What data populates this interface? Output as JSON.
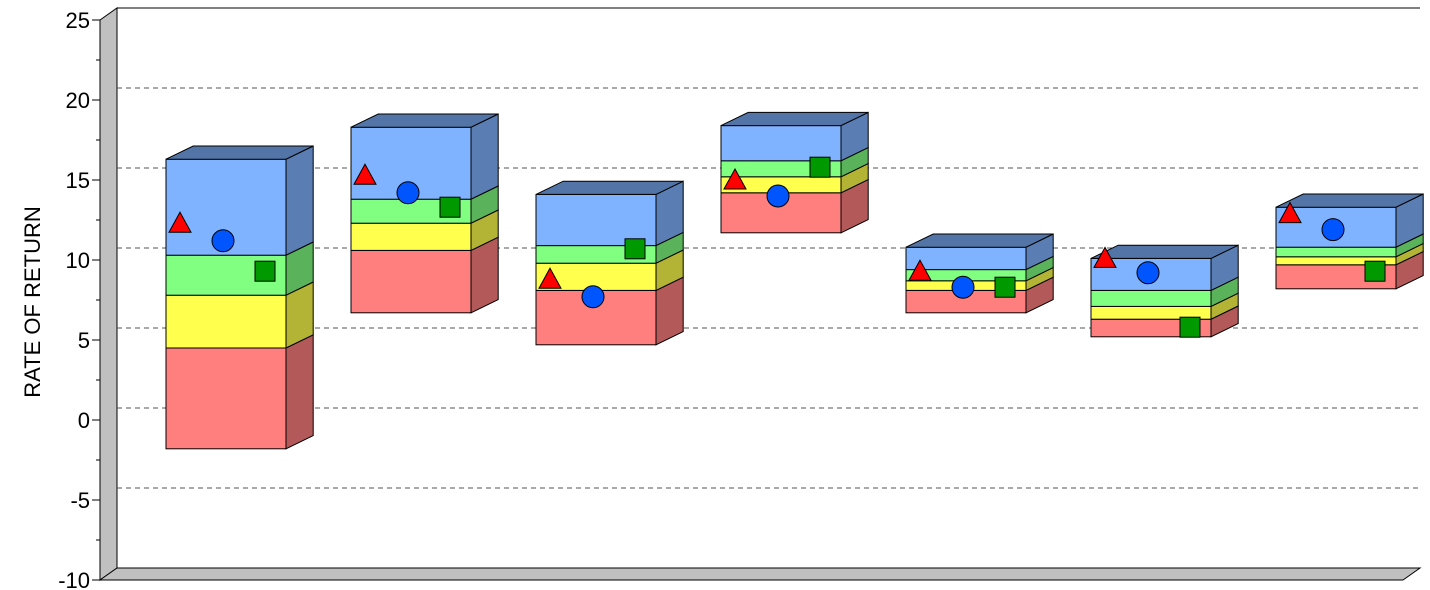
{
  "chart_data": {
    "type": "floating-bar",
    "title": "",
    "xlabel": "",
    "ylabel": "RATE OF RETURN",
    "ylim": [
      -10,
      25
    ],
    "yticks": [
      "25",
      "20",
      "15",
      "10",
      "5",
      "0",
      "-5",
      "-10"
    ],
    "grid": "dashed horizontal",
    "legend": "none",
    "segment_colors": {
      "red": "#ff7f7f",
      "yellow": "#ffff4d",
      "green": "#80ff80",
      "blue": "#80b3ff"
    },
    "bars": [
      {
        "breaks": [
          -1.8,
          4.5,
          7.8,
          10.3,
          16.3
        ],
        "triangle": 12.3,
        "circle": 11.2,
        "square": 9.3
      },
      {
        "breaks": [
          6.7,
          10.6,
          12.3,
          13.8,
          18.3
        ],
        "triangle": 15.3,
        "circle": 14.2,
        "square": 13.3
      },
      {
        "breaks": [
          4.7,
          8.1,
          9.8,
          10.9,
          14.1
        ],
        "triangle": 8.8,
        "circle": 7.7,
        "square": 10.7
      },
      {
        "breaks": [
          11.7,
          14.2,
          15.2,
          16.2,
          18.4
        ],
        "triangle": 15.0,
        "circle": 14.0,
        "square": 15.8
      },
      {
        "breaks": [
          6.7,
          8.1,
          8.7,
          9.4,
          10.8
        ],
        "triangle": 9.3,
        "circle": 8.3,
        "square": 8.3
      },
      {
        "breaks": [
          5.2,
          6.3,
          7.1,
          8.1,
          10.1
        ],
        "triangle": 10.1,
        "circle": 9.2,
        "square": 5.8
      },
      {
        "breaks": [
          8.2,
          9.7,
          10.2,
          10.8,
          13.3
        ],
        "triangle": 12.9,
        "circle": 11.9,
        "square": 9.3
      }
    ],
    "marker_colors": {
      "triangle": "#ff0000",
      "circle": "#0055ff",
      "square": "#009900"
    }
  }
}
